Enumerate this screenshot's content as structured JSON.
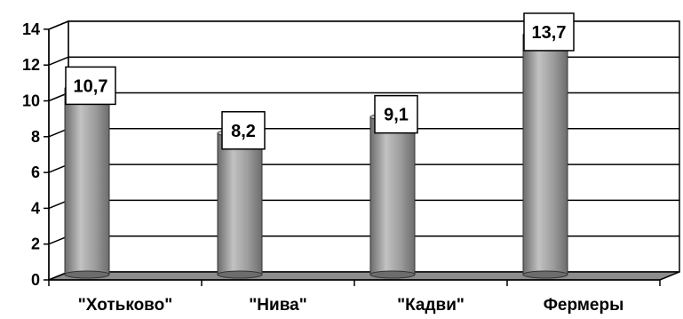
{
  "chart_data": {
    "type": "bar",
    "style": "3d-cylinder",
    "title": "",
    "xlabel": "",
    "ylabel": "",
    "categories": [
      "\"Хотьково\"",
      "\"Нива\"",
      "\"Кадви\"",
      "Фермеры"
    ],
    "values": [
      10.7,
      8.2,
      9.1,
      13.7
    ],
    "value_labels": [
      "10,7",
      "8,2",
      "9,1",
      "13,7"
    ],
    "ylim": [
      0,
      14
    ],
    "yticks": [
      "0",
      "2",
      "4",
      "6",
      "8",
      "10",
      "12",
      "14"
    ],
    "grid": "horizontal",
    "legend": "none",
    "colors": {
      "bar": "#9a9a9a",
      "bar_dark": "#6c6c6c",
      "bar_light": "#c2c2c2",
      "floor": "#8c8c8c",
      "grid": "#000000",
      "label_box": "#ffffff"
    }
  }
}
